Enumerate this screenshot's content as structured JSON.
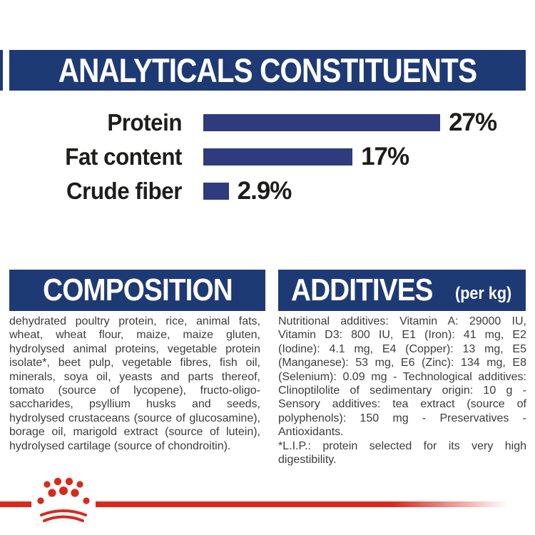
{
  "colors": {
    "navy_header": "#1e3a75",
    "navy_bar": "#2e3b7d",
    "red": "#d9291c",
    "text_dark": "#3c3c3b",
    "text_black": "#1d1d1b",
    "white": "#ffffff"
  },
  "header": {
    "title": "ANALYTICALS CONSTITUENTS"
  },
  "chart_data": {
    "type": "bar",
    "orientation": "horizontal",
    "categories": [
      "Protein",
      "Fat content",
      "Crude fiber"
    ],
    "values": [
      27,
      17,
      2.9
    ],
    "value_labels": [
      "27%",
      "17%",
      "2.9%"
    ],
    "unit": "%",
    "xlim": [
      0,
      27
    ],
    "bar_color": "#2e3b7d",
    "grid": false,
    "legend": false
  },
  "composition": {
    "title": "COMPOSITION",
    "body": "dehydrated poultry protein, rice, animal fats, wheat, wheat flour, maize, maize gluten, hydrolysed animal proteins, vegetable protein isolate*, beet pulp, vegetable fibres, fish oil, minerals, soya oil, yeasts and parts thereof, tomato (source of lycopene), fructo-oligo-saccharides, psyllium husks and seeds, hydrolysed crustaceans (source of glucosamine), borage oil, marigold extract (source of lutein), hydrolysed cartilage (source of chondroitin)."
  },
  "additives": {
    "title": "ADDITIVES",
    "subtitle": "(per kg)",
    "body": "Nutritional additives: Vitamin A: 29000 IU, Vitamin D3: 800 IU, E1 (Iron): 41 mg, E2 (Iodine): 4.1 mg, E4 (Copper): 13 mg, E5 (Manganese): 53 mg, E6 (Zinc): 134 mg, E8 (Selenium): 0.09 mg - Technological additives: Clinoptilolite of sedimentary origin: 10 g - Sensory additives: tea extract (source of polyphenols): 150 mg - Preservatives - Antioxidants.",
    "footnote": "*L.I.P.: protein selected for its very high digestibility."
  },
  "footer": {
    "logo": "royal-canin-crown-logo"
  }
}
